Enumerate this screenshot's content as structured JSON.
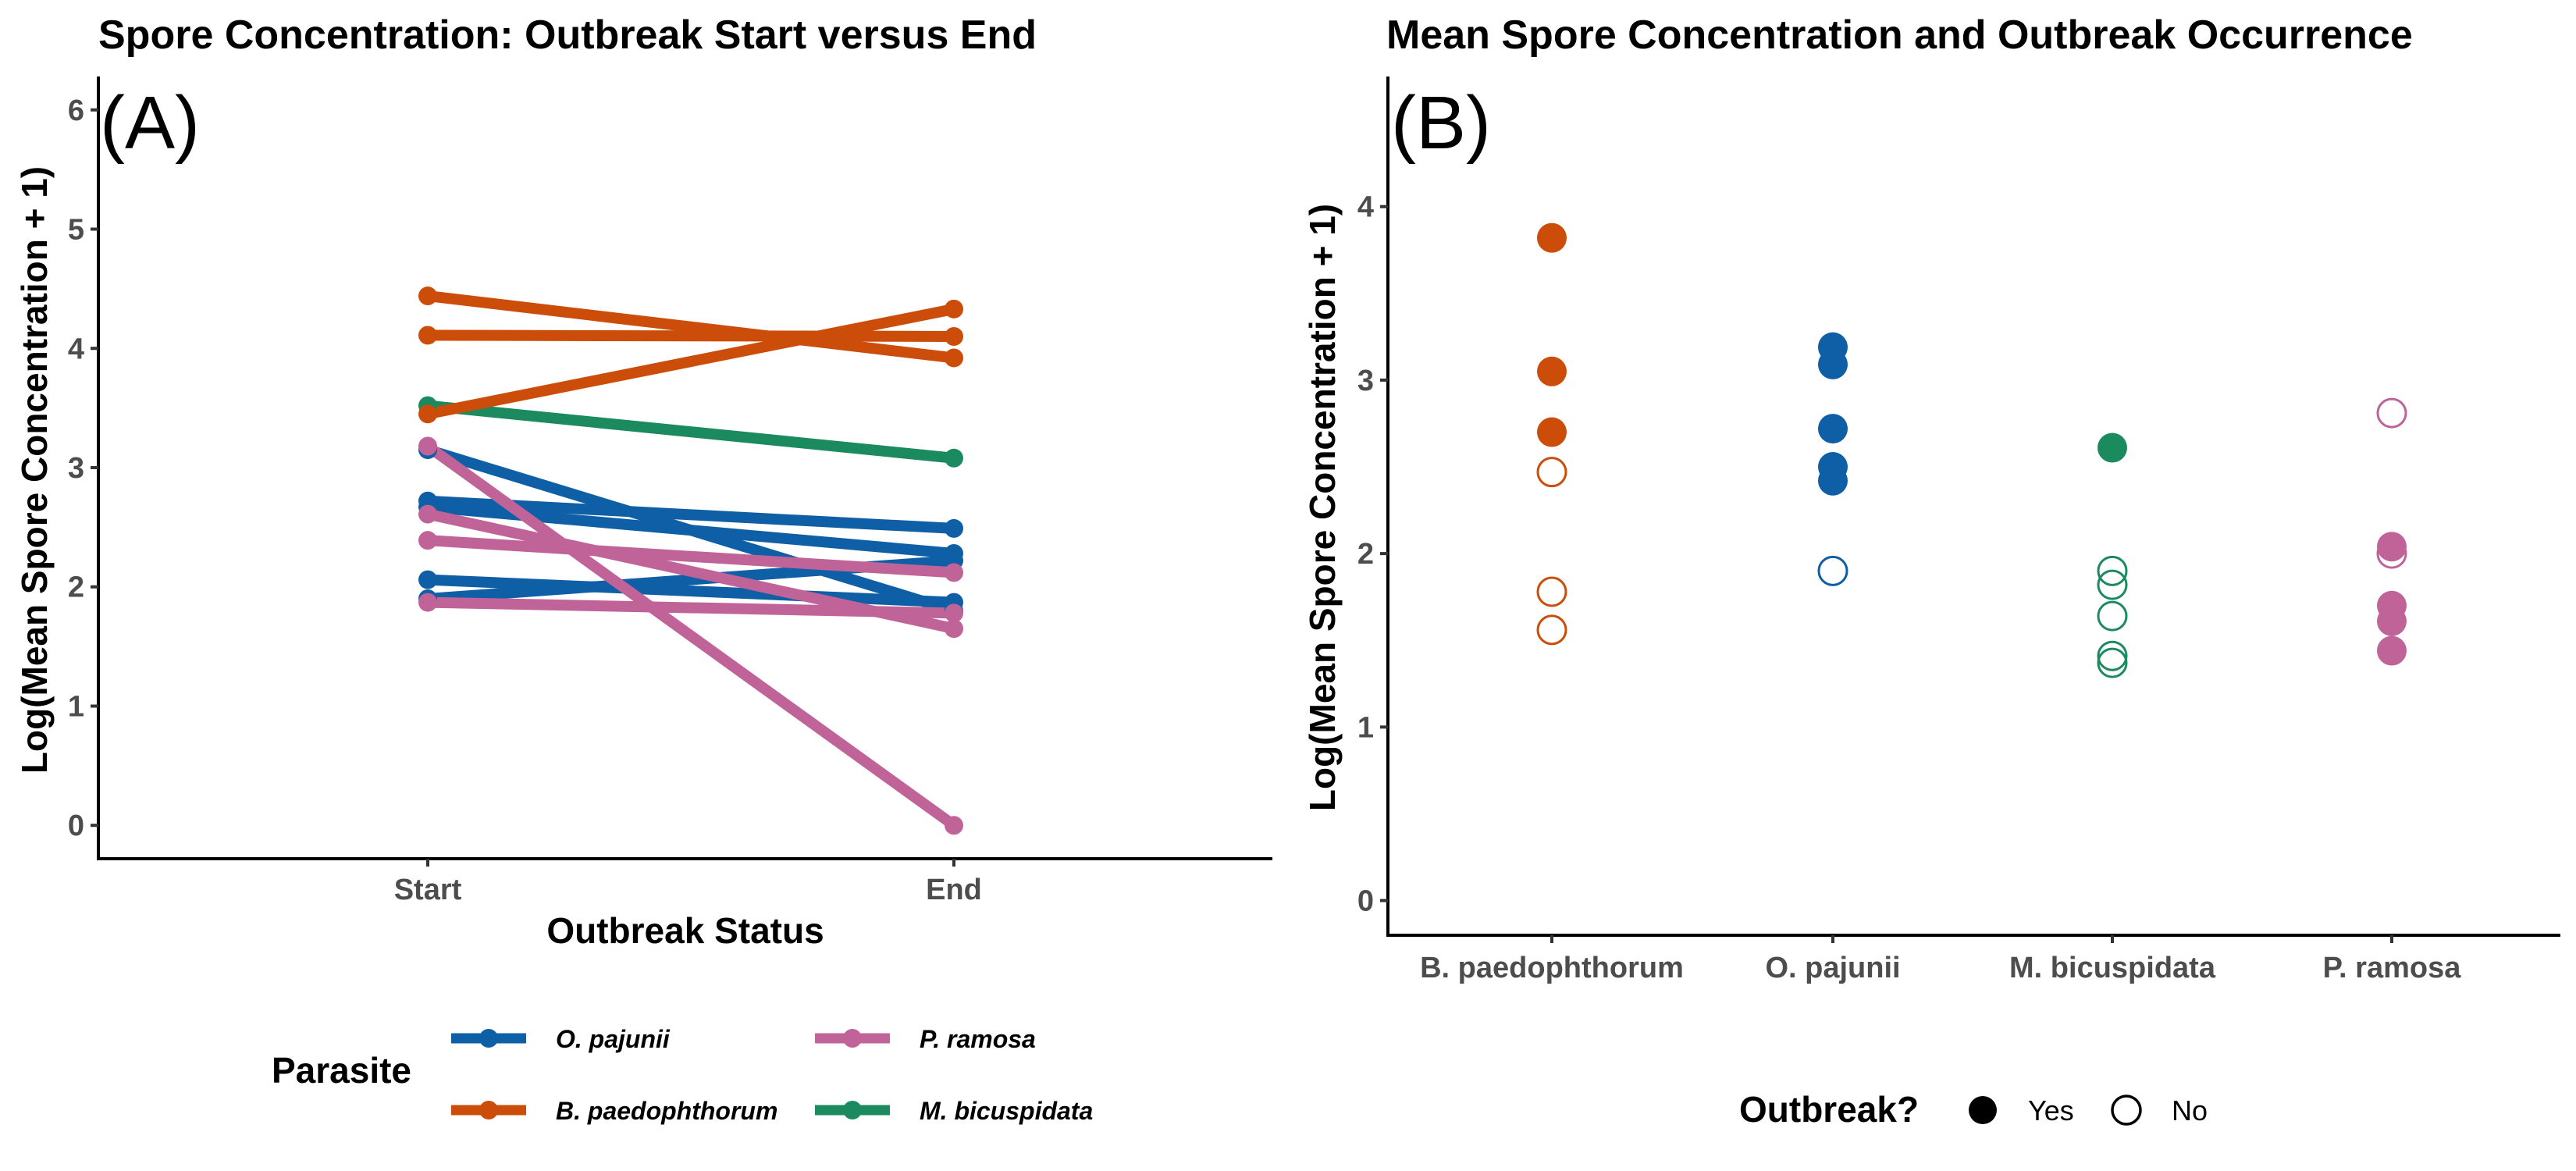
{
  "colors": {
    "O. pajunii": "#0F5FA6",
    "B. paedophthorum": "#CC4C0A",
    "P. ramosa": "#C06399",
    "M. bicuspidata": "#1B8A5F"
  },
  "chart_data": [
    {
      "type": "line",
      "panel_label": "(A)",
      "title": "Spore Concentration: Outbreak Start versus End",
      "xlabel": "Outbreak Status",
      "ylabel": "Log(Mean Spore Concentration + 1)",
      "categories": [
        "Start",
        "End"
      ],
      "ylim": [
        -0.28,
        6.28
      ],
      "yticks": [
        0,
        1,
        2,
        3,
        4,
        5,
        6
      ],
      "legend": {
        "title": "Parasite",
        "position": "bottom",
        "entries": [
          "O. pajunii",
          "B. paedophthorum",
          "P. ramosa",
          "M. bicuspidata"
        ]
      },
      "series": [
        {
          "parasite": "O. pajunii",
          "values": [
            2.72,
            2.49
          ]
        },
        {
          "parasite": "O. pajunii",
          "values": [
            2.67,
            2.28
          ]
        },
        {
          "parasite": "O. pajunii",
          "values": [
            3.15,
            1.8
          ]
        },
        {
          "parasite": "O. pajunii",
          "values": [
            2.06,
            1.87
          ]
        },
        {
          "parasite": "O. pajunii",
          "values": [
            1.9,
            2.22
          ]
        },
        {
          "parasite": "B. paedophthorum",
          "values": [
            4.44,
            3.92
          ]
        },
        {
          "parasite": "B. paedophthorum",
          "values": [
            4.11,
            4.1
          ]
        },
        {
          "parasite": "B. paedophthorum",
          "values": [
            3.45,
            4.33
          ]
        },
        {
          "parasite": "M. bicuspidata",
          "values": [
            3.52,
            3.08
          ]
        },
        {
          "parasite": "P. ramosa",
          "values": [
            3.18,
            0.0
          ]
        },
        {
          "parasite": "P. ramosa",
          "values": [
            2.61,
            1.65
          ]
        },
        {
          "parasite": "P. ramosa",
          "values": [
            2.39,
            2.12
          ]
        },
        {
          "parasite": "P. ramosa",
          "values": [
            1.87,
            1.78
          ]
        }
      ]
    },
    {
      "type": "scatter",
      "panel_label": "(B)",
      "title": "Mean Spore Concentration and Outbreak Occurrence",
      "xlabel": "",
      "ylabel": "Log(Mean Spore Concentration + 1)",
      "categories": [
        "B. paedophthorum",
        "O. pajunii",
        "M. bicuspidata",
        "P. ramosa"
      ],
      "ylim": [
        -0.2,
        4.75
      ],
      "yticks": [
        0,
        1,
        2,
        3,
        4
      ],
      "legend": {
        "title": "Outbreak?",
        "position": "bottom",
        "entries": [
          "Yes",
          "No"
        ]
      },
      "points": [
        {
          "category": "B. paedophthorum",
          "y": 3.82,
          "outbreak": "Yes"
        },
        {
          "category": "B. paedophthorum",
          "y": 3.05,
          "outbreak": "Yes"
        },
        {
          "category": "B. paedophthorum",
          "y": 2.7,
          "outbreak": "Yes"
        },
        {
          "category": "B. paedophthorum",
          "y": 2.47,
          "outbreak": "No"
        },
        {
          "category": "B. paedophthorum",
          "y": 1.78,
          "outbreak": "No"
        },
        {
          "category": "B. paedophthorum",
          "y": 1.56,
          "outbreak": "No"
        },
        {
          "category": "O. pajunii",
          "y": 3.19,
          "outbreak": "Yes"
        },
        {
          "category": "O. pajunii",
          "y": 3.09,
          "outbreak": "Yes"
        },
        {
          "category": "O. pajunii",
          "y": 2.72,
          "outbreak": "Yes"
        },
        {
          "category": "O. pajunii",
          "y": 2.5,
          "outbreak": "Yes"
        },
        {
          "category": "O. pajunii",
          "y": 2.42,
          "outbreak": "Yes"
        },
        {
          "category": "O. pajunii",
          "y": 1.9,
          "outbreak": "No"
        },
        {
          "category": "M. bicuspidata",
          "y": 2.61,
          "outbreak": "Yes"
        },
        {
          "category": "M. bicuspidata",
          "y": 1.9,
          "outbreak": "No"
        },
        {
          "category": "M. bicuspidata",
          "y": 1.82,
          "outbreak": "No"
        },
        {
          "category": "M. bicuspidata",
          "y": 1.64,
          "outbreak": "No"
        },
        {
          "category": "M. bicuspidata",
          "y": 1.41,
          "outbreak": "No"
        },
        {
          "category": "M. bicuspidata",
          "y": 1.37,
          "outbreak": "No"
        },
        {
          "category": "P. ramosa",
          "y": 2.81,
          "outbreak": "No"
        },
        {
          "category": "P. ramosa",
          "y": 2.04,
          "outbreak": "Yes"
        },
        {
          "category": "P. ramosa",
          "y": 2.0,
          "outbreak": "No"
        },
        {
          "category": "P. ramosa",
          "y": 1.7,
          "outbreak": "Yes"
        },
        {
          "category": "P. ramosa",
          "y": 1.61,
          "outbreak": "Yes"
        },
        {
          "category": "P. ramosa",
          "y": 1.44,
          "outbreak": "Yes"
        }
      ]
    }
  ]
}
